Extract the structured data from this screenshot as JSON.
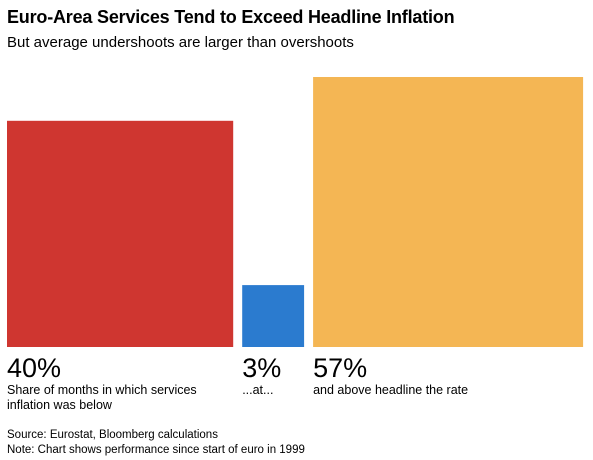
{
  "header": {
    "title": "Euro-Area Services Tend to Exceed Headline Inflation",
    "subtitle": "But average undershoots are larger than overshoots"
  },
  "chart_data": {
    "type": "area-proportional squares",
    "title": "Euro-Area Services Tend to Exceed Headline Inflation",
    "subtitle": "But average undershoots are larger than overshoots",
    "items": [
      {
        "value": 40,
        "value_label": "40%",
        "description": [
          "Share of months in which services",
          "inflation was below"
        ],
        "color": "#cf3630"
      },
      {
        "value": 3,
        "value_label": "3%",
        "description": [
          "...at..."
        ],
        "color": "#2b7bcf"
      },
      {
        "value": 57,
        "value_label": "57%",
        "description": [
          "and above headline the rate"
        ],
        "color": "#f4b654"
      }
    ],
    "unit": "%"
  },
  "footer": {
    "source": "Source: Eurostat, Bloomberg calculations",
    "note": "Note: Chart shows performance since start of euro in 1999"
  }
}
